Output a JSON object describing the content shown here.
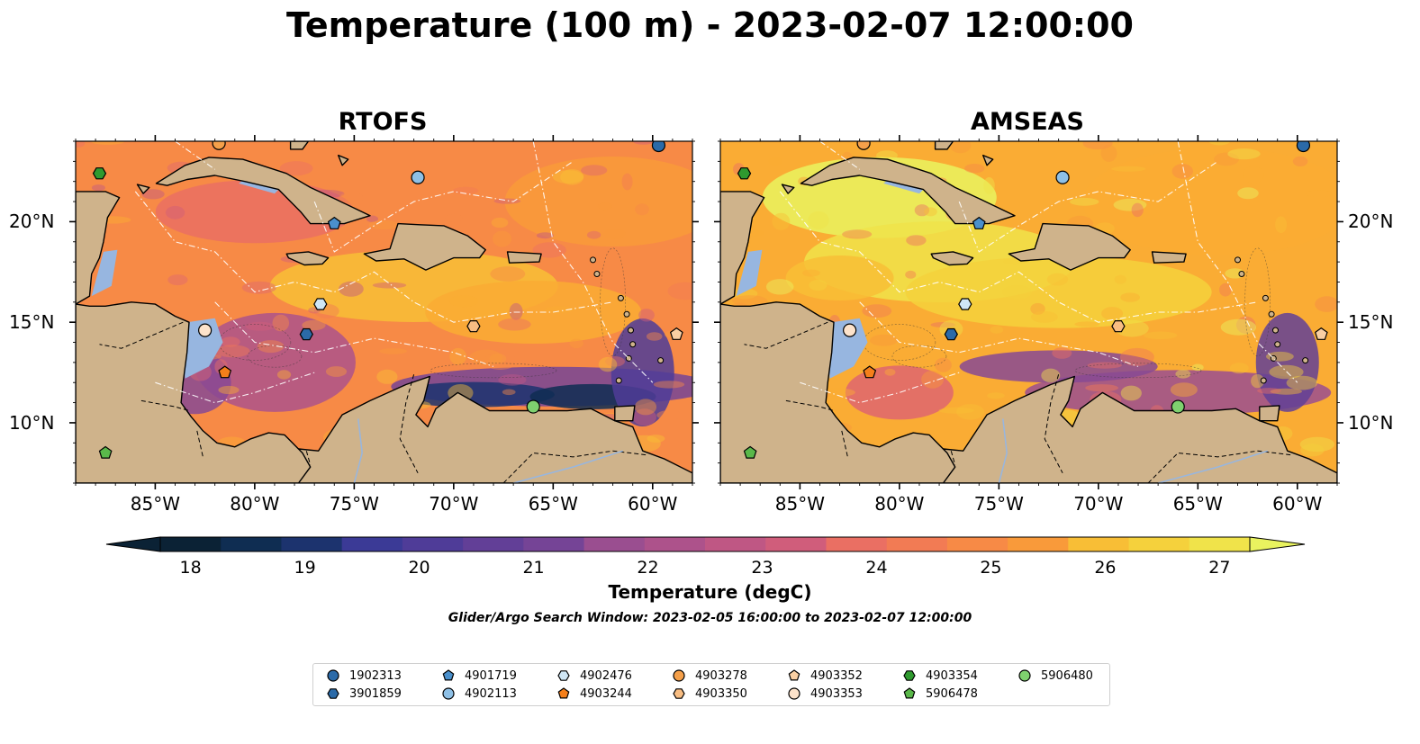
{
  "title": "Temperature (100 m) - 2023-02-07 12:00:00",
  "panels": [
    {
      "title": "RTOFS"
    },
    {
      "title": "AMSEAS"
    }
  ],
  "x_ticks": [
    "85°W",
    "80°W",
    "75°W",
    "70°W",
    "65°W",
    "60°W"
  ],
  "y_ticks": [
    "20°N",
    "15°N",
    "10°N"
  ],
  "map_extent": {
    "lon": [
      -89,
      -58
    ],
    "lat": [
      7,
      24
    ]
  },
  "colorbar": {
    "label": "Temperature (degC)",
    "ticks": [
      "18",
      "19",
      "20",
      "21",
      "22",
      "23",
      "24",
      "25",
      "26",
      "27"
    ],
    "range": [
      18,
      27
    ],
    "colormap": "thermal",
    "colors": [
      "#0b2235",
      "#0f2d52",
      "#1c336e",
      "#2b3788",
      "#3b3a96",
      "#4f3c98",
      "#623f97",
      "#754496",
      "#874994",
      "#9a4e90",
      "#ad528b",
      "#bf5784",
      "#d05d7b",
      "#de6570",
      "#ea6f63",
      "#f27b54",
      "#f78a46",
      "#f99a3a",
      "#faac34",
      "#f8be36",
      "#f5d13c",
      "#f0e34a",
      "#e9f35f"
    ]
  },
  "search_window": "Glider/Argo Search Window: 2023-02-05 16:00:00 to 2023-02-07 12:00:00",
  "legend": [
    {
      "id": "1902313",
      "marker": "circle",
      "color": "#2b6aa8"
    },
    {
      "id": "3901859",
      "marker": "hexagon",
      "color": "#2b6aa8"
    },
    {
      "id": "4901719",
      "marker": "pentagon",
      "color": "#4a90cc"
    },
    {
      "id": "4902113",
      "marker": "circle",
      "color": "#8ec0e6"
    },
    {
      "id": "4902476",
      "marker": "hexagon",
      "color": "#cfe6f5"
    },
    {
      "id": "4903244",
      "marker": "pentagon",
      "color": "#f57f1a"
    },
    {
      "id": "4903278",
      "marker": "circle",
      "color": "#f5a04a"
    },
    {
      "id": "4903350",
      "marker": "hexagon",
      "color": "#f8bd82"
    },
    {
      "id": "4903352",
      "marker": "pentagon",
      "color": "#f9cfa3"
    },
    {
      "id": "4903353",
      "marker": "circle",
      "color": "#fde3cb"
    },
    {
      "id": "4903354",
      "marker": "hexagon",
      "color": "#2f9a2f"
    },
    {
      "id": "5906478",
      "marker": "pentagon",
      "color": "#5ab84a"
    },
    {
      "id": "5906480",
      "marker": "circle",
      "color": "#7fd16f"
    }
  ],
  "observations": [
    {
      "id": "1902313",
      "lon": -59.7,
      "lat": 23.8
    },
    {
      "id": "3901859",
      "lon": -77.4,
      "lat": 14.4
    },
    {
      "id": "4901719",
      "lon": -76.0,
      "lat": 19.9
    },
    {
      "id": "4902113",
      "lon": -71.8,
      "lat": 22.2
    },
    {
      "id": "4902476",
      "lon": -76.7,
      "lat": 15.9
    },
    {
      "id": "4903244",
      "lon": -81.5,
      "lat": 12.5
    },
    {
      "id": "4903278",
      "lon": -81.8,
      "lat": 23.9
    },
    {
      "id": "4903350",
      "lon": -69.0,
      "lat": 14.8
    },
    {
      "id": "4903352",
      "lon": -58.8,
      "lat": 14.4
    },
    {
      "id": "4903353",
      "lon": -82.5,
      "lat": 14.6
    },
    {
      "id": "4903354",
      "lon": -87.8,
      "lat": 22.4
    },
    {
      "id": "5906478",
      "lon": -87.5,
      "lat": 8.5
    },
    {
      "id": "5906480",
      "lon": -66.0,
      "lat": 10.8
    }
  ]
}
